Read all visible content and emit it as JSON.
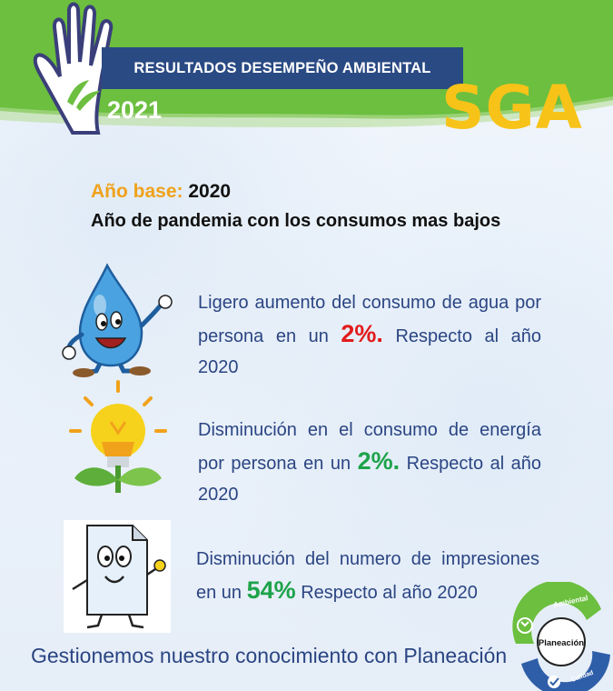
{
  "header": {
    "title": "RESULTADOS DESEMPEÑO AMBIENTAL",
    "year": "2021",
    "brand": "SGA"
  },
  "baseline": {
    "label": "Año base:",
    "value": "2020",
    "note": "Año de pandemia con los consumos mas bajos"
  },
  "items": [
    {
      "icon": "water-drop-icon",
      "text_before": "Ligero aumento del consumo de agua por persona en un",
      "percent": "2%.",
      "text_after": "Respecto al año 2020",
      "percent_color": "#e21c1c"
    },
    {
      "icon": "lightbulb-plant-icon",
      "text_before": "Disminución en el consumo de energía por persona en un",
      "percent": "2%.",
      "text_after": "Respecto al año 2020",
      "percent_color": "#1ea34a"
    },
    {
      "icon": "paper-sheet-icon",
      "text_before": "Disminución del numero de impresiones en un",
      "percent": "54%",
      "text_after": "Respecto al año 2020",
      "percent_color": "#1ea34a"
    }
  ],
  "footer": {
    "text": "Gestionemos nuestro conocimiento con Planeación"
  },
  "logo": {
    "center": "Planeación",
    "top_arc": "Ambiental",
    "bottom_arc": "Calidad"
  },
  "colors": {
    "green": "#6cbf3f",
    "navy": "#2a4a83",
    "gold": "#f7c318",
    "text_blue": "#2b4583"
  }
}
